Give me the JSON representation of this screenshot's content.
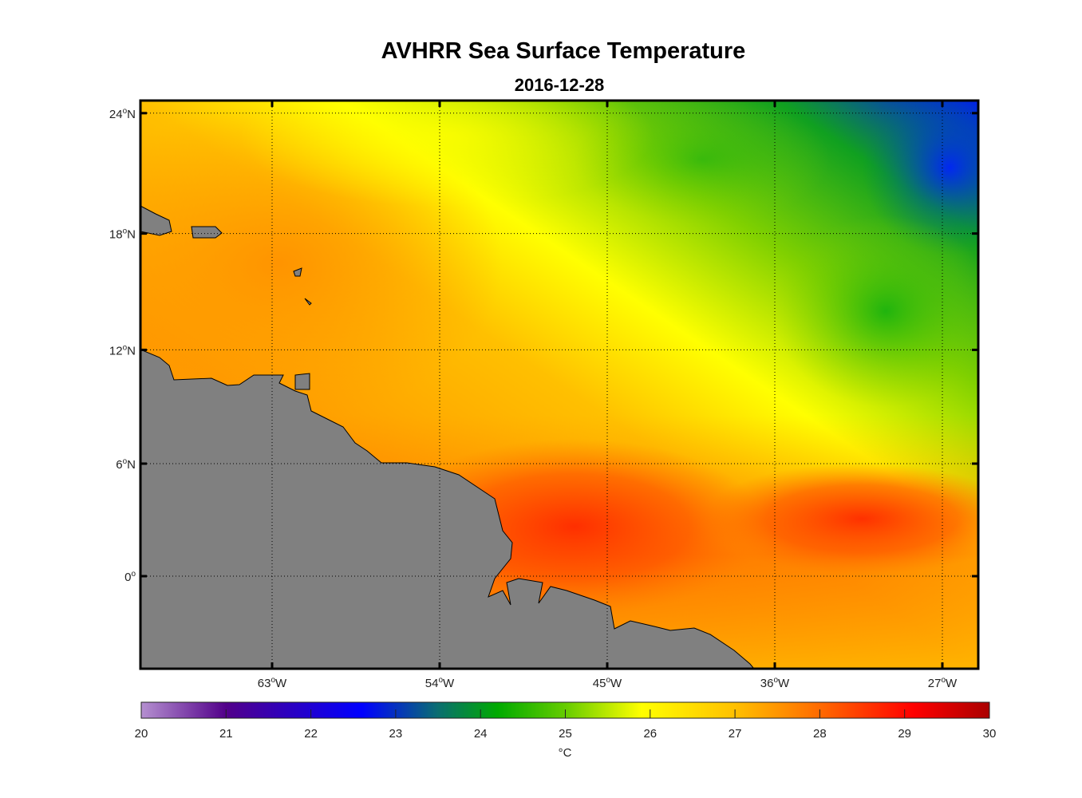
{
  "chart_data": {
    "type": "heatmap",
    "title": "AVHRR Sea Surface Temperature",
    "subtitle": "2016-12-28",
    "lon_range": [
      -70,
      -25
    ],
    "lat_range": [
      -5,
      25
    ],
    "x_ticks": [
      {
        "value": -63,
        "label": "63",
        "suffix": "W"
      },
      {
        "value": -54,
        "label": "54",
        "suffix": "W"
      },
      {
        "value": -45,
        "label": "45",
        "suffix": "W"
      },
      {
        "value": -36,
        "label": "36",
        "suffix": "W"
      },
      {
        "value": -27,
        "label": "27",
        "suffix": "W"
      }
    ],
    "y_ticks": [
      {
        "value": 24,
        "label": "24",
        "suffix": "N"
      },
      {
        "value": 18,
        "label": "18",
        "suffix": "N"
      },
      {
        "value": 12,
        "label": "12",
        "suffix": "N"
      },
      {
        "value": 6,
        "label": "6",
        "suffix": "N"
      },
      {
        "value": 0,
        "label": "0",
        "suffix": ""
      }
    ],
    "grid": true,
    "land_color": "#808080",
    "colorbar": {
      "range": [
        20,
        30
      ],
      "ticks": [
        "20",
        "21",
        "22",
        "23",
        "24",
        "25",
        "26",
        "27",
        "28",
        "29",
        "30"
      ],
      "label": "°C",
      "placement": "bottom",
      "colormap": [
        {
          "v": 20,
          "c": "#b590d0"
        },
        {
          "v": 21,
          "c": "#52008a"
        },
        {
          "v": 22.6,
          "c": "#0000ff"
        },
        {
          "v": 23.5,
          "c": "#0a6e70"
        },
        {
          "v": 24.2,
          "c": "#00aa00"
        },
        {
          "v": 25,
          "c": "#66cc00"
        },
        {
          "v": 25.9,
          "c": "#ffff00"
        },
        {
          "v": 27,
          "c": "#ffc000"
        },
        {
          "v": 28,
          "c": "#ff6a00"
        },
        {
          "v": 29.1,
          "c": "#ff0000"
        },
        {
          "v": 30,
          "c": "#aa0000"
        }
      ]
    }
  }
}
